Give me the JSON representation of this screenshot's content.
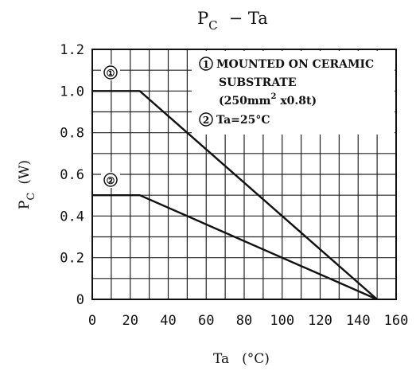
{
  "chart_data": {
    "type": "line",
    "title": {
      "main": "P",
      "sub": "C",
      "rest": "− Ta"
    },
    "xlabel": {
      "main": "Ta",
      "unit": "(°C)"
    },
    "ylabel": {
      "main": "P",
      "sub": "C",
      "unit": "(W)"
    },
    "xlim": [
      0,
      160
    ],
    "ylim": [
      0,
      1.2
    ],
    "x_ticks": [
      0,
      20,
      40,
      60,
      80,
      100,
      120,
      140,
      160
    ],
    "x_tick_labels": [
      "0",
      "20",
      "40",
      "60",
      "80",
      "100",
      "120",
      "140",
      "160"
    ],
    "y_ticks": [
      0,
      0.2,
      0.4,
      0.6,
      0.8,
      1.0,
      1.2
    ],
    "y_tick_labels": [
      "0",
      "0.2",
      "0.4",
      "0.6",
      "0.8",
      "1.0",
      "1.2"
    ],
    "grid": true,
    "grid_x_step": 10,
    "grid_y_step": 0.1,
    "series": [
      {
        "name": "①",
        "x": [
          0,
          25,
          150
        ],
        "y": [
          1.0,
          1.0,
          0
        ]
      },
      {
        "name": "②",
        "x": [
          0,
          25,
          150
        ],
        "y": [
          0.5,
          0.5,
          0
        ]
      }
    ],
    "legend": {
      "placement": "top-right",
      "entries": [
        {
          "marker": "1",
          "lines": [
            "MOUNTED ON CERAMIC",
            "SUBSTRATE"
          ],
          "extra": {
            "pre": "(250mm",
            "sup": "2",
            "post": " x0.8t)"
          }
        },
        {
          "marker": "2",
          "lines": [
            "Ta=25°C"
          ]
        }
      ]
    }
  }
}
